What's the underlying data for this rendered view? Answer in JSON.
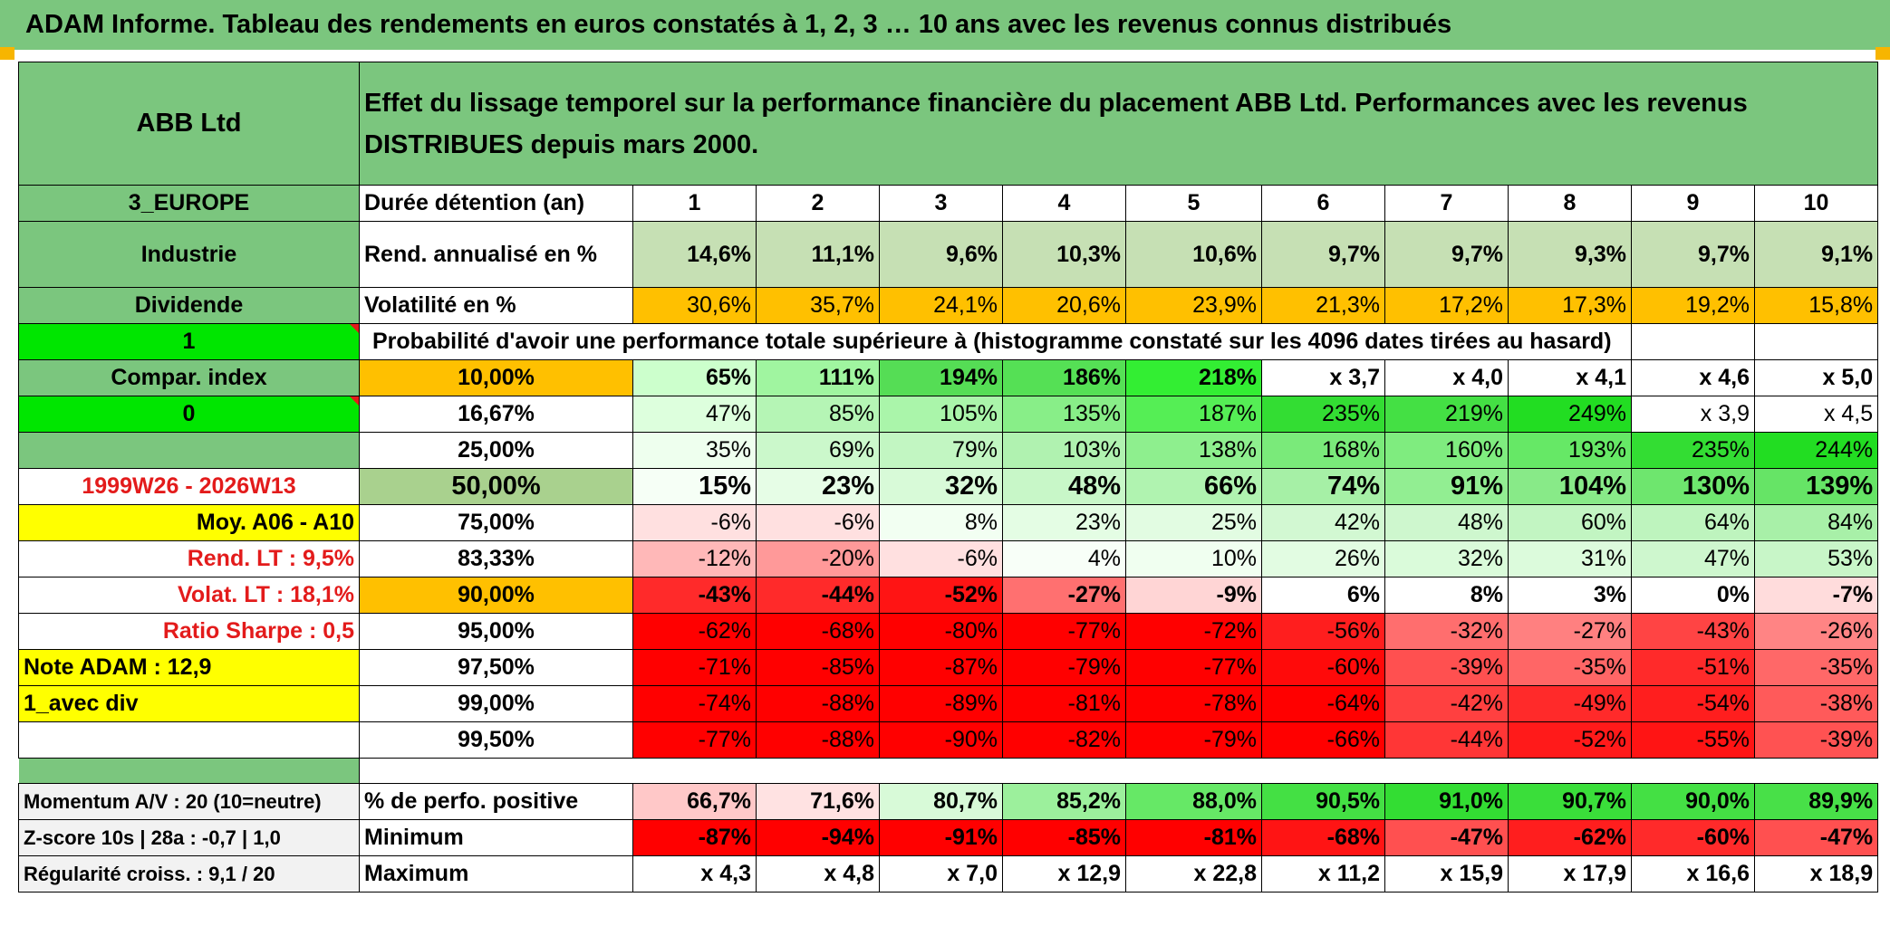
{
  "title": "ADAM Informe. Tableau des rendements en euros constatés à 1, 2, 3 … 10 ans avec les revenus connus distribués",
  "fund_name": "ABB Ltd",
  "header_text": "Effet du lissage temporel sur la performance financière du placement ABB Ltd. Performances avec les revenus DISTRIBUES depuis mars 2000.",
  "left_panel": {
    "region": "3_EUROPE",
    "sector": "Industrie",
    "distribution": "Dividende",
    "flag1": "1",
    "compar_index": "Compar. index",
    "flag0": "0",
    "period": "1999W26 - 2026W13",
    "moy": "Moy. A06 - A10",
    "rend_lt": "Rend. LT :   9,5%",
    "volat_lt": "Volat. LT :   18,1%",
    "sharpe": "Ratio Sharpe :    0,5",
    "note": "Note ADAM : 12,9",
    "variant": "1_avec div",
    "momentum": "Momentum A/V : 20 (10=neutre)",
    "zscore": "Z-score 10s | 28a : -0,7 | 1,0",
    "regularite": "Régularité croiss. : 9,1 / 20"
  },
  "row_labels": {
    "duree": "Durée détention (an)",
    "rend": "Rend. annualisé en %",
    "vol": "Volatilité en %",
    "proba": "Probabilité d'avoir une performance totale supérieure à (histogramme constaté sur les 4096 dates tirées au hasard)",
    "positive": "% de perfo. positive",
    "minimum": "Minimum",
    "maximum": "Maximum"
  },
  "years": [
    "1",
    "2",
    "3",
    "4",
    "5",
    "6",
    "7",
    "8",
    "9",
    "10"
  ],
  "rend_annualise": [
    "14,6%",
    "11,1%",
    "9,6%",
    "10,3%",
    "10,6%",
    "9,7%",
    "9,7%",
    "9,3%",
    "9,7%",
    "9,1%"
  ],
  "volatilite": [
    "30,6%",
    "35,7%",
    "24,1%",
    "20,6%",
    "23,9%",
    "21,3%",
    "17,2%",
    "17,3%",
    "19,2%",
    "15,8%"
  ],
  "prob_rows": [
    {
      "label": "10,00%",
      "values": [
        "65%",
        "111%",
        "194%",
        "186%",
        "218%",
        "x 3,7",
        "x 4,0",
        "x 4,1",
        "x 4,6",
        "x 5,0"
      ]
    },
    {
      "label": "16,67%",
      "values": [
        "47%",
        "85%",
        "105%",
        "135%",
        "187%",
        "235%",
        "219%",
        "249%",
        "x 3,9",
        "x 4,5"
      ]
    },
    {
      "label": "25,00%",
      "values": [
        "35%",
        "69%",
        "79%",
        "103%",
        "138%",
        "168%",
        "160%",
        "193%",
        "235%",
        "244%"
      ]
    },
    {
      "label": "50,00%",
      "values": [
        "15%",
        "23%",
        "32%",
        "48%",
        "66%",
        "74%",
        "91%",
        "104%",
        "130%",
        "139%"
      ]
    },
    {
      "label": "75,00%",
      "values": [
        "-6%",
        "-6%",
        "8%",
        "23%",
        "25%",
        "42%",
        "48%",
        "60%",
        "64%",
        "84%"
      ]
    },
    {
      "label": "83,33%",
      "values": [
        "-12%",
        "-20%",
        "-6%",
        "4%",
        "10%",
        "26%",
        "32%",
        "31%",
        "47%",
        "53%"
      ]
    },
    {
      "label": "90,00%",
      "values": [
        "-43%",
        "-44%",
        "-52%",
        "-27%",
        "-9%",
        "6%",
        "8%",
        "3%",
        "0%",
        "-7%"
      ]
    },
    {
      "label": "95,00%",
      "values": [
        "-62%",
        "-68%",
        "-80%",
        "-77%",
        "-72%",
        "-56%",
        "-32%",
        "-27%",
        "-43%",
        "-26%"
      ]
    },
    {
      "label": "97,50%",
      "values": [
        "-71%",
        "-85%",
        "-87%",
        "-79%",
        "-77%",
        "-60%",
        "-39%",
        "-35%",
        "-51%",
        "-35%"
      ]
    },
    {
      "label": "99,00%",
      "values": [
        "-74%",
        "-88%",
        "-89%",
        "-81%",
        "-78%",
        "-64%",
        "-42%",
        "-49%",
        "-54%",
        "-38%"
      ]
    },
    {
      "label": "99,50%",
      "values": [
        "-77%",
        "-88%",
        "-90%",
        "-82%",
        "-79%",
        "-66%",
        "-44%",
        "-52%",
        "-55%",
        "-39%"
      ]
    }
  ],
  "perf_positive": [
    "66,7%",
    "71,6%",
    "80,7%",
    "85,2%",
    "88,0%",
    "90,5%",
    "91,0%",
    "90,7%",
    "90,0%",
    "89,9%"
  ],
  "minimum": [
    "-87%",
    "-94%",
    "-91%",
    "-85%",
    "-81%",
    "-68%",
    "-47%",
    "-62%",
    "-60%",
    "-47%"
  ],
  "maximum": [
    "x 4,3",
    "x 4,8",
    "x 7,0",
    "x 12,9",
    "x 22,8",
    "x 11,2",
    "x 15,9",
    "x 17,9",
    "x 16,6",
    "x 18,9"
  ],
  "colors": {
    "header_green": "#7bc67e",
    "orange": "#ffc000",
    "yellow": "#ffff00",
    "bright_green": "#00e600",
    "red": "#ff0000",
    "label_red": "#e31b1b"
  },
  "cell_colors": {
    "rend": [
      "#c6e0b4",
      "#c6e0b4",
      "#c6e0b4",
      "#c6e0b4",
      "#c6e0b4",
      "#c6e0b4",
      "#c6e0b4",
      "#c6e0b4",
      "#c6e0b4",
      "#c6e0b4"
    ],
    "vol": [
      "#ffc000",
      "#ffc000",
      "#ffc000",
      "#ffc000",
      "#ffc000",
      "#ffc000",
      "#ffc000",
      "#ffc000",
      "#ffc000",
      "#ffc000"
    ],
    "prob": [
      [
        "#ccffcc",
        "#a0f5a0",
        "#55dd55",
        "#55e055",
        "#33ee33",
        "#ffffff",
        "#ffffff",
        "#ffffff",
        "#ffffff",
        "#ffffff"
      ],
      [
        "#ddffdd",
        "#b5f5b5",
        "#aaf5aa",
        "#88ee88",
        "#55ee55",
        "#33dd33",
        "#44e044",
        "#22dd22",
        "#ffffff",
        "#ffffff"
      ],
      [
        "#eeffee",
        "#cbf8cb",
        "#c2f6c2",
        "#b0f2b0",
        "#8eef8e",
        "#7aea7a",
        "#7fec7f",
        "#66e866",
        "#33dd33",
        "#22dd22"
      ],
      [
        "#f6fff6",
        "#e6fde6",
        "#d8fad8",
        "#c8f7c8",
        "#b0f3b0",
        "#a6f0a6",
        "#92ee92",
        "#88ea88",
        "#6ee66e",
        "#66e466"
      ],
      [
        "#ffe0e0",
        "#ffe0e0",
        "#f2fff2",
        "#e4fde4",
        "#e2fce2",
        "#d2f8d2",
        "#cef7ce",
        "#c2f5c2",
        "#bef4be",
        "#a8f0a8"
      ],
      [
        "#ffb8b8",
        "#ff9999",
        "#ffe0e0",
        "#f8fff8",
        "#f0fff0",
        "#e2fce2",
        "#dafbda",
        "#dcfbdc",
        "#cef7ce",
        "#c8f6c8"
      ],
      [
        "#ff2a2a",
        "#ff2a2a",
        "#ff1414",
        "#ff7070",
        "#ffd5d5",
        "#ffffff",
        "#ffffff",
        "#ffffff",
        "#ffffff",
        "#ffdcdc"
      ],
      [
        "#ff0000",
        "#ff0000",
        "#ff0000",
        "#ff0000",
        "#ff0000",
        "#ff1e1e",
        "#ff6e6e",
        "#ff8080",
        "#ff4444",
        "#ff8484"
      ],
      [
        "#ff0000",
        "#ff0000",
        "#ff0000",
        "#ff0000",
        "#ff0000",
        "#ff0a0a",
        "#ff5050",
        "#ff6666",
        "#ff2a2a",
        "#ff6868"
      ],
      [
        "#ff0000",
        "#ff0000",
        "#ff0000",
        "#ff0000",
        "#ff0000",
        "#ff0000",
        "#ff4040",
        "#ff2a2a",
        "#ff1e1e",
        "#ff5a5a"
      ],
      [
        "#ff0000",
        "#ff0000",
        "#ff0000",
        "#ff0000",
        "#ff0000",
        "#ff0000",
        "#ff3636",
        "#ff1a1a",
        "#ff1414",
        "#ff5252"
      ]
    ],
    "positive": [
      "#ffc8c8",
      "#ffe2e2",
      "#d8fad8",
      "#9cf09c",
      "#66e866",
      "#44e044",
      "#33dd33",
      "#3ade3a",
      "#44e044",
      "#48e048"
    ],
    "minimum": [
      "#ff0000",
      "#ff0000",
      "#ff0000",
      "#ff0000",
      "#ff0000",
      "#ff1414",
      "#ff5050",
      "#ff1e1e",
      "#ff2a2a",
      "#ff5050"
    ],
    "maximum": [
      "#ffffff",
      "#ffffff",
      "#ffffff",
      "#ffffff",
      "#ffffff",
      "#ffffff",
      "#ffffff",
      "#ffffff",
      "#ffffff",
      "#ffffff"
    ]
  }
}
